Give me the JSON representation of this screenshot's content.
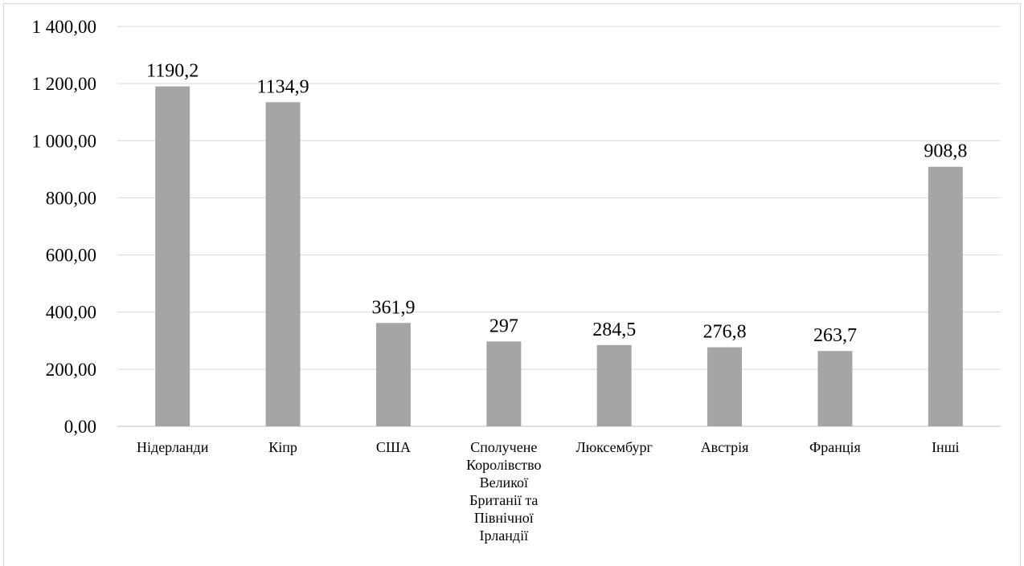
{
  "chart_data": {
    "type": "bar",
    "categories": [
      [
        "Нідерланди"
      ],
      [
        "Кіпр"
      ],
      [
        "США"
      ],
      [
        "Сполучене",
        "Королівство",
        "Великої",
        "Британії та",
        "Північної",
        "Ірландії"
      ],
      [
        "Люксембург"
      ],
      [
        "Австрія"
      ],
      [
        "Франція"
      ],
      [
        "Інші"
      ]
    ],
    "values": [
      1190.2,
      1134.9,
      361.9,
      297,
      284.5,
      276.8,
      263.7,
      908.8
    ],
    "data_labels": [
      "1190,2",
      "1134,9",
      "361,9",
      "297",
      "284,5",
      "276,8",
      "263,7",
      "908,8"
    ],
    "ylim": [
      0,
      1400
    ],
    "y_ticks": [
      0,
      200,
      400,
      600,
      800,
      1000,
      1200,
      1400
    ],
    "y_tick_labels": [
      "0,00",
      "200,00",
      "400,00",
      "600,00",
      "800,00",
      "1 000,00",
      "1 200,00",
      "1 400,00"
    ],
    "grid": true,
    "colors": {
      "bar": "#a5a5a5",
      "grid": "#d9d9d9",
      "axis": "#bfbfbf"
    }
  }
}
